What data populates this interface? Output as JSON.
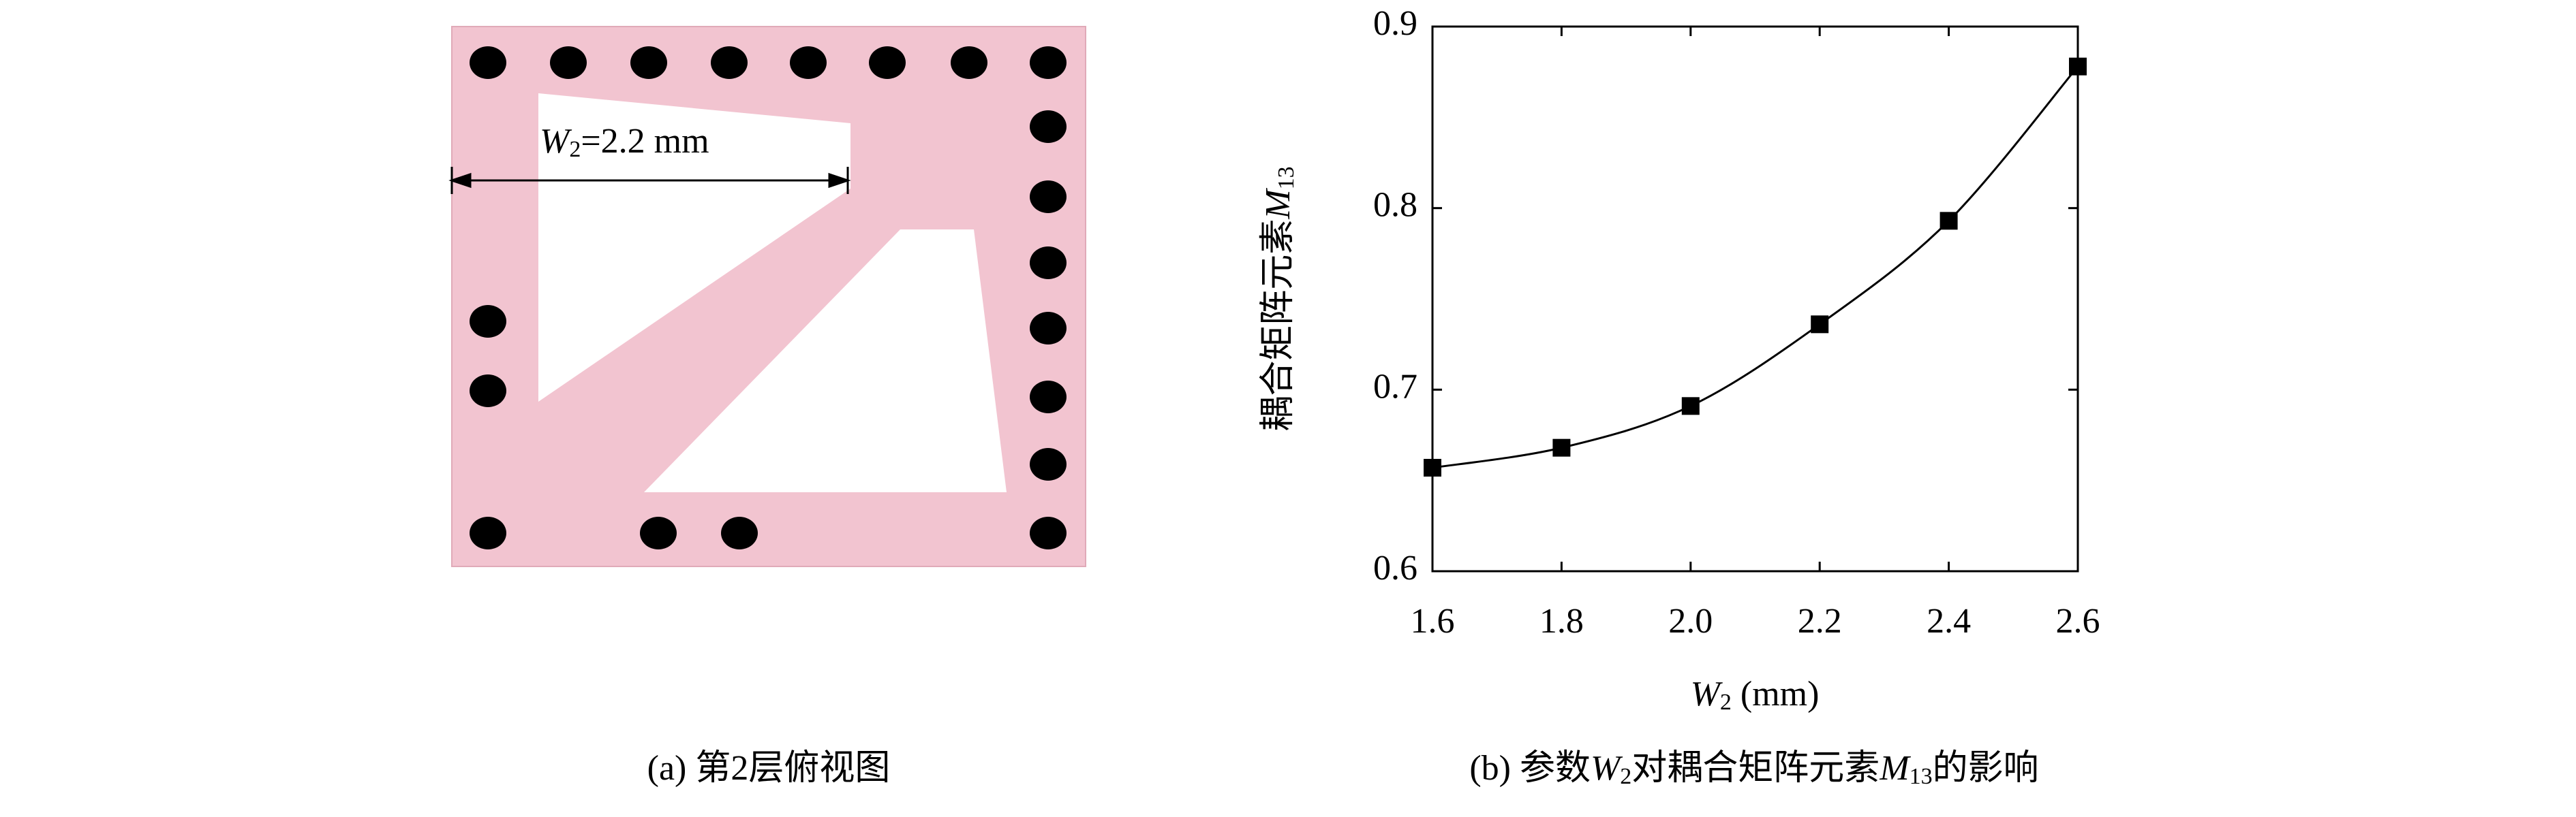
{
  "panel_a": {
    "annotation": {
      "symbol": "W",
      "subscript": "2",
      "text": "=2.2 mm"
    },
    "caption": "(a) 第2层俯视图"
  },
  "chart_data": {
    "type": "line",
    "caption_parts": [
      "(b) 参数",
      "W",
      "2",
      "对耦合矩阵元素",
      "M",
      "13",
      "的影响"
    ],
    "xlabel_parts": [
      "W",
      "2",
      " (mm)"
    ],
    "ylabel_parts": [
      "耦合矩阵元素",
      "M",
      "13"
    ],
    "x": [
      1.6,
      1.8,
      2.0,
      2.2,
      2.4,
      2.6
    ],
    "series": [
      {
        "values": [
          0.657,
          0.668,
          0.691,
          0.736,
          0.793,
          0.878
        ],
        "color": "#000000",
        "marker": "square"
      }
    ],
    "xlim": [
      1.6,
      2.6
    ],
    "xticks": [
      1.6,
      1.8,
      {
        "value": 2,
        "label": "2.0"
      },
      2.2,
      2.4,
      2.6
    ],
    "ylim": [
      0.6,
      0.9
    ],
    "yticks": [
      0.6,
      0.7,
      0.8,
      0.9
    ],
    "grid": false
  }
}
